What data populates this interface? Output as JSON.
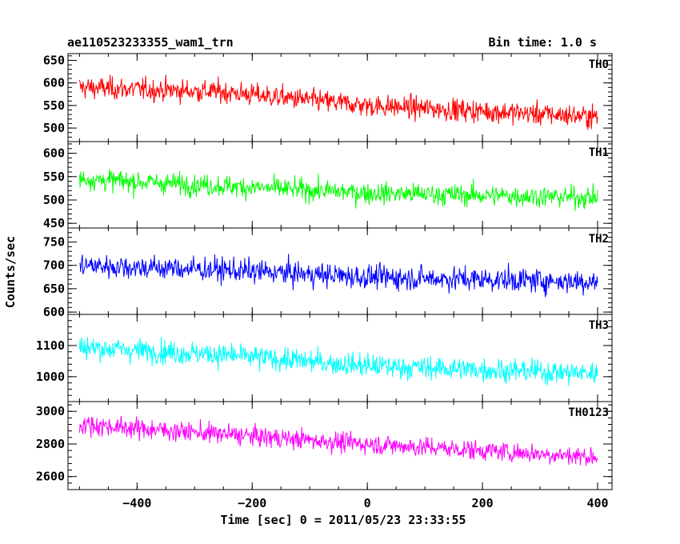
{
  "header": {
    "title_left": "ae110523233355_wam1_trn",
    "title_right": "Bin time: 1.0 s"
  },
  "chart_data": {
    "type": "line",
    "title": "ae110523233355_wam1_trn",
    "subtitle": "Bin time: 1.0 s",
    "xlabel": "Time [sec] 0 = 2011/05/23 23:33:55",
    "ylabel": "Counts/sec",
    "xlim": [
      -520,
      425
    ],
    "x_ticks": [
      -400,
      -200,
      0,
      200,
      400
    ],
    "x_range_data": [
      -500,
      400
    ],
    "panels": [
      {
        "name": "TH0",
        "color": "#ff0000",
        "ylim": [
          470,
          665
        ],
        "y_ticks": [
          500,
          550,
          600,
          650
        ],
        "trend": [
          [
            -500,
            590
          ],
          [
            -250,
            580
          ],
          [
            0,
            550
          ],
          [
            400,
            525
          ]
        ],
        "noise_sigma": 25
      },
      {
        "name": "TH1",
        "color": "#00ff00",
        "ylim": [
          440,
          625
        ],
        "y_ticks": [
          450,
          500,
          550,
          600
        ],
        "trend": [
          [
            -500,
            545
          ],
          [
            -250,
            530
          ],
          [
            0,
            515
          ],
          [
            400,
            505
          ]
        ],
        "noise_sigma": 23
      },
      {
        "name": "TH2",
        "color": "#0000ff",
        "ylim": [
          595,
          780
        ],
        "y_ticks": [
          600,
          650,
          700,
          750
        ],
        "trend": [
          [
            -500,
            700
          ],
          [
            -250,
            690
          ],
          [
            0,
            675
          ],
          [
            400,
            665
          ]
        ],
        "noise_sigma": 26
      },
      {
        "name": "TH3",
        "color": "#00ffff",
        "ylim": [
          920,
          1200
        ],
        "y_ticks": [
          1000,
          1100
        ],
        "trend": [
          [
            -500,
            1095
          ],
          [
            -250,
            1070
          ],
          [
            0,
            1035
          ],
          [
            400,
            1010
          ]
        ],
        "noise_sigma": 38
      },
      {
        "name": "TH0123",
        "color": "#ff00ff",
        "ylim": [
          2520,
          3060
        ],
        "y_ticks": [
          2600,
          2800,
          3000
        ],
        "trend": [
          [
            -500,
            2920
          ],
          [
            -250,
            2860
          ],
          [
            0,
            2800
          ],
          [
            400,
            2720
          ]
        ],
        "noise_sigma": 62
      }
    ]
  }
}
